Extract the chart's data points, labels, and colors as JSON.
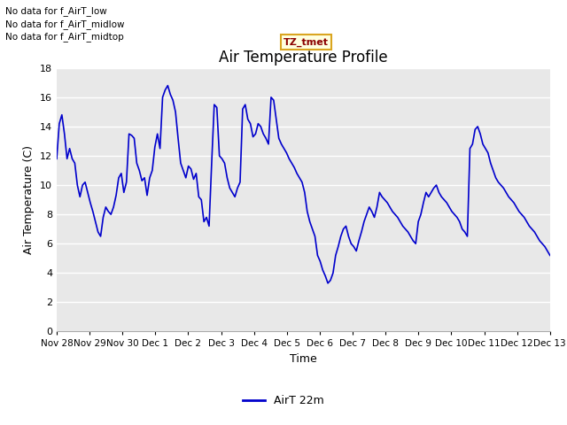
{
  "title": "Air Temperature Profile",
  "xlabel": "Time",
  "ylabel": "Air Temperature (C)",
  "line_color": "#0000cc",
  "line_width": 1.2,
  "background_color": "#ffffff",
  "plot_bg_color": "#e8e8e8",
  "grid_color": "#ffffff",
  "ylim": [
    0,
    18
  ],
  "yticks": [
    0,
    2,
    4,
    6,
    8,
    10,
    12,
    14,
    16,
    18
  ],
  "xtick_labels": [
    "Nov 28",
    "Nov 29",
    "Nov 30",
    "Dec 1",
    "Dec 2",
    "Dec 3",
    "Dec 4",
    "Dec 5",
    "Dec 6",
    "Dec 7",
    "Dec 8",
    "Dec 9",
    "Dec 10",
    "Dec 11",
    "Dec 12",
    "Dec 13"
  ],
  "legend_label": "AirT 22m",
  "annotations": [
    "No data for f_AirT_low",
    "No data for f_AirT_midlow",
    "No data for f_AirT_midtop"
  ],
  "annotation_box_text": "TZ_tmet",
  "temp_values": [
    11.8,
    14.2,
    14.8,
    13.5,
    11.8,
    12.5,
    11.8,
    11.5,
    10.0,
    9.2,
    10.0,
    10.2,
    9.5,
    8.8,
    8.2,
    7.5,
    6.8,
    6.5,
    7.8,
    8.5,
    8.2,
    8.0,
    8.5,
    9.3,
    10.5,
    10.8,
    9.5,
    10.2,
    13.5,
    13.4,
    13.2,
    11.5,
    11.0,
    10.3,
    10.5,
    9.3,
    10.5,
    11.0,
    12.6,
    13.5,
    12.5,
    16.0,
    16.5,
    16.8,
    16.2,
    15.8,
    15.0,
    13.2,
    11.5,
    11.0,
    10.5,
    11.3,
    11.1,
    10.4,
    10.8,
    9.2,
    9.0,
    7.5,
    7.8,
    7.2,
    11.5,
    15.5,
    15.3,
    12.0,
    11.8,
    11.5,
    10.5,
    9.8,
    9.5,
    9.2,
    9.8,
    10.2,
    15.2,
    15.5,
    14.5,
    14.2,
    13.3,
    13.5,
    14.2,
    14.0,
    13.5,
    13.2,
    12.8,
    16.0,
    15.8,
    14.5,
    13.2,
    12.8,
    12.5,
    12.2,
    11.8,
    11.5,
    11.2,
    10.8,
    10.5,
    10.2,
    9.5,
    8.2,
    7.5,
    7.0,
    6.5,
    5.2,
    4.8,
    4.2,
    3.8,
    3.3,
    3.5,
    4.0,
    5.2,
    5.8,
    6.5,
    7.0,
    7.2,
    6.5,
    6.0,
    5.8,
    5.5,
    6.2,
    6.8,
    7.5,
    8.0,
    8.5,
    8.2,
    7.8,
    8.5,
    9.5,
    9.2,
    9.0,
    8.8,
    8.5,
    8.2,
    8.0,
    7.8,
    7.5,
    7.2,
    7.0,
    6.8,
    6.5,
    6.2,
    6.0,
    7.5,
    8.0,
    8.8,
    9.5,
    9.2,
    9.5,
    9.8,
    10.0,
    9.5,
    9.2,
    9.0,
    8.8,
    8.5,
    8.2,
    8.0,
    7.8,
    7.5,
    7.0,
    6.8,
    6.5,
    12.5,
    12.8,
    13.8,
    14.0,
    13.5,
    12.8,
    12.5,
    12.2,
    11.5,
    11.0,
    10.5,
    10.2,
    10.0,
    9.8,
    9.5,
    9.2,
    9.0,
    8.8,
    8.5,
    8.2,
    8.0,
    7.8,
    7.5,
    7.2,
    7.0,
    6.8,
    6.5,
    6.2,
    6.0,
    5.8,
    5.5,
    5.2
  ]
}
